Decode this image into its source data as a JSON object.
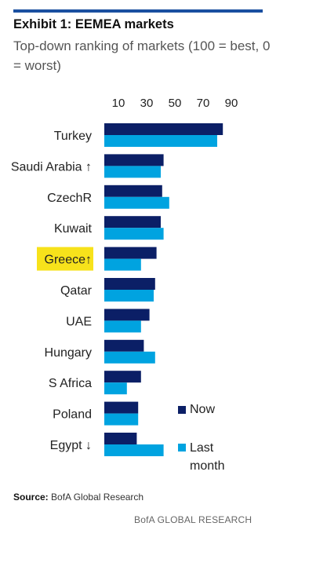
{
  "header": {
    "title": "Exhibit 1: EEMEA markets",
    "subtitle": "Top-down ranking of markets (100 = best, 0 = worst)"
  },
  "chart_data": {
    "type": "bar",
    "orientation": "horizontal",
    "x_ticks": [
      10,
      30,
      50,
      70,
      90
    ],
    "xlim": [
      0,
      100
    ],
    "grid": false,
    "legend_position": "bottom-right",
    "categories": [
      "Turkey",
      "Saudi Arabia ↑",
      "CzechR",
      "Kuwait",
      "Greece↑",
      "Qatar",
      "UAE",
      "Hungary",
      "S Africa",
      "Poland",
      "Egypt ↓"
    ],
    "highlighted_category": "Greece↑",
    "series": [
      {
        "name": "Now",
        "color": "#0b1f66",
        "values": [
          84,
          42,
          41,
          40,
          37,
          36,
          32,
          28,
          26,
          24,
          23
        ]
      },
      {
        "name": "Last month",
        "color": "#00a3e0",
        "values": [
          80,
          40,
          46,
          42,
          26,
          35,
          26,
          36,
          16,
          24,
          42
        ]
      }
    ]
  },
  "legend": {
    "now": "Now",
    "last_line1": "Last",
    "last_line2": "month"
  },
  "source": {
    "label": "Source:",
    "text": "BofA Global Research"
  },
  "footer": "BofA GLOBAL RESEARCH"
}
